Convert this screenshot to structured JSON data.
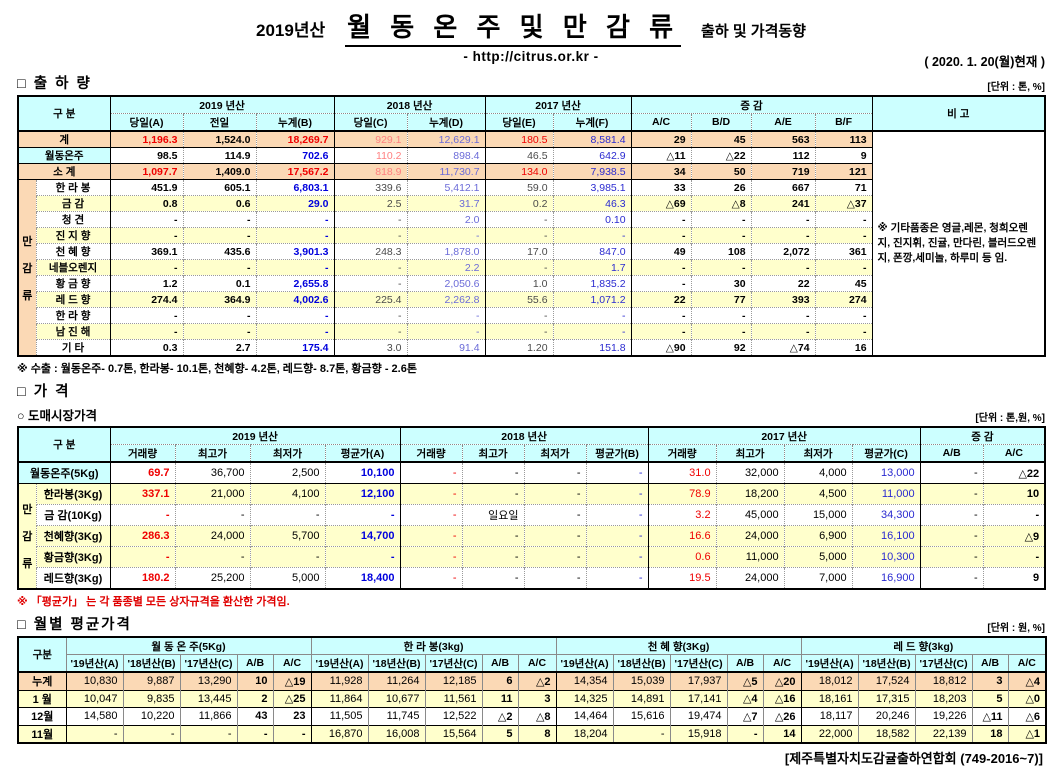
{
  "header": {
    "year": "2019년산",
    "title": "월 동 온 주 및 만 감 류",
    "subtitle": "출하 및 가격동향",
    "url": "- http://citrus.or.kr -",
    "date": "( 2020. 1. 20(월)현재 )"
  },
  "colors": {
    "header_bg": "#ccffff",
    "total_row_bg": "#fbd9b5",
    "shaded_row_bg": "#ffffcc",
    "accent_red": "#ef0000",
    "accent_blue": "#0000dd"
  },
  "shipment": {
    "section_title": "□ 출 하 량",
    "unit": "[단위 : 톤, %]",
    "corner_label": "구    분",
    "groups": [
      "2019 년산",
      "2018 년산",
      "2017 년산",
      "증       감"
    ],
    "sub_headers": [
      "당일(A)",
      "전일",
      "누계(B)",
      "당일(C)",
      "누계(D)",
      "당일(E)",
      "누계(F)",
      "A/C",
      "B/D",
      "A/E",
      "B/F"
    ],
    "remark_header": "비 고",
    "remark_text": "※ 기타품종은 영글,레몬, 청희오렌지, 진지휘, 진귤, 만다린, 블러드오렌지, 폰깡,세미놀, 하루미 등 임.",
    "side_label": "만감류",
    "rows": [
      {
        "label": "계",
        "kind": "total",
        "shaded": false,
        "values": [
          "1,196.3",
          "1,524.0",
          "18,269.7",
          "929.1",
          "12,629.1",
          "180.5",
          "8,581.4",
          "29",
          "45",
          "563",
          "113"
        ]
      },
      {
        "label": "월동온주",
        "kind": "onju",
        "shaded": false,
        "values": [
          "98.5",
          "114.9",
          "702.6",
          "110.2",
          "898.4",
          "46.5",
          "642.9",
          "△11",
          "△22",
          "112",
          "9"
        ]
      },
      {
        "label": "소     계",
        "kind": "total",
        "shaded": false,
        "values": [
          "1,097.7",
          "1,409.0",
          "17,567.2",
          "818.9",
          "11,730.7",
          "134.0",
          "7,938.5",
          "34",
          "50",
          "719",
          "121"
        ]
      },
      {
        "label": "한 라 봉",
        "kind": "detail",
        "shaded": false,
        "values": [
          "451.9",
          "605.1",
          "6,803.1",
          "339.6",
          "5,412.1",
          "59.0",
          "3,985.1",
          "33",
          "26",
          "667",
          "71"
        ]
      },
      {
        "label": "금     감",
        "kind": "detail",
        "shaded": true,
        "values": [
          "0.8",
          "0.6",
          "29.0",
          "2.5",
          "31.7",
          "0.2",
          "46.3",
          "△69",
          "△8",
          "241",
          "△37"
        ]
      },
      {
        "label": "청     견",
        "kind": "detail",
        "shaded": false,
        "values": [
          "-",
          "-",
          "-",
          "-",
          "2.0",
          "-",
          "0.10",
          "-",
          "-",
          "-",
          "-"
        ]
      },
      {
        "label": "진 지 향",
        "kind": "detail",
        "shaded": true,
        "values": [
          "-",
          "-",
          "-",
          "-",
          "-",
          "-",
          "-",
          "-",
          "-",
          "-",
          "-"
        ]
      },
      {
        "label": "천 혜 향",
        "kind": "detail",
        "shaded": false,
        "values": [
          "369.1",
          "435.6",
          "3,901.3",
          "248.3",
          "1,878.0",
          "17.0",
          "847.0",
          "49",
          "108",
          "2,072",
          "361"
        ]
      },
      {
        "label": "네블오렌지",
        "kind": "detail",
        "shaded": true,
        "values": [
          "-",
          "-",
          "-",
          "-",
          "2.2",
          "-",
          "1.7",
          "-",
          "-",
          "-",
          "-"
        ]
      },
      {
        "label": "황 금 향",
        "kind": "detail",
        "shaded": false,
        "values": [
          "1.2",
          "0.1",
          "2,655.8",
          "-",
          "2,050.6",
          "1.0",
          "1,835.2",
          "-",
          "30",
          "22",
          "45"
        ]
      },
      {
        "label": "레 드 향",
        "kind": "detail",
        "shaded": true,
        "values": [
          "274.4",
          "364.9",
          "4,002.6",
          "225.4",
          "2,262.8",
          "55.6",
          "1,071.2",
          "22",
          "77",
          "393",
          "274"
        ]
      },
      {
        "label": "한 라 향",
        "kind": "detail",
        "shaded": false,
        "values": [
          "-",
          "-",
          "-",
          "-",
          "-",
          "-",
          "-",
          "-",
          "-",
          "-",
          "-"
        ]
      },
      {
        "label": "남 진 해",
        "kind": "detail",
        "shaded": true,
        "values": [
          "-",
          "-",
          "-",
          "-",
          "-",
          "-",
          "-",
          "-",
          "-",
          "-",
          "-"
        ]
      },
      {
        "label": "기     타",
        "kind": "detail",
        "shaded": false,
        "values": [
          "0.3",
          "2.7",
          "175.4",
          "3.0",
          "91.4",
          "1.20",
          "151.8",
          "△90",
          "92",
          "△74",
          "16"
        ]
      }
    ],
    "footnote": "※ 수출 : 월동온주- 0.7톤, 한라봉- 10.1톤, 천혜향- 4.2톤, 레드향- 8.7톤, 황금향 - 2.6톤"
  },
  "price": {
    "section_title": "□ 가     격",
    "sub_section_title": "○ 도매시장가격",
    "unit": "[단위 : 톤,원, %]",
    "corner_label": "구      분",
    "groups": [
      "2019 년산",
      "2018 년산",
      "2017 년산",
      "증  감"
    ],
    "sub_headers": [
      "거래량",
      "최고가",
      "최저가",
      "평균가(A)",
      "거래량",
      "최고가",
      "최저가",
      "평균가(B)",
      "거래량",
      "최고가",
      "최저가",
      "평균가(C)",
      "A/B",
      "A/C"
    ],
    "side_label": "만감류",
    "rows": [
      {
        "label": "월동온주(5Kg)",
        "kind": "onju",
        "shaded": false,
        "values": [
          "69.7",
          "36,700",
          "2,500",
          "10,100",
          "-",
          "-",
          "-",
          "-",
          "31.0",
          "32,000",
          "4,000",
          "13,000",
          "-",
          "△22"
        ]
      },
      {
        "label": "한라봉(3Kg)",
        "kind": "detail",
        "shaded": true,
        "values": [
          "337.1",
          "21,000",
          "4,100",
          "12,100",
          "-",
          "-",
          "-",
          "-",
          "78.9",
          "18,200",
          "4,500",
          "11,000",
          "-",
          "10"
        ]
      },
      {
        "label": "금  감(10Kg)",
        "kind": "detail",
        "shaded": false,
        "values": [
          "-",
          "-",
          "-",
          "-",
          "-",
          "일요일",
          "-",
          "-",
          "3.2",
          "45,000",
          "15,000",
          "34,300",
          "-",
          "-"
        ]
      },
      {
        "label": "천혜향(3Kg)",
        "kind": "detail",
        "shaded": true,
        "values": [
          "286.3",
          "24,000",
          "5,700",
          "14,700",
          "-",
          "-",
          "-",
          "-",
          "16.6",
          "24,000",
          "6,900",
          "16,100",
          "-",
          "△9"
        ]
      },
      {
        "label": "황금향(3Kg)",
        "kind": "detail",
        "shaded": true,
        "values": [
          "-",
          "-",
          "-",
          "-",
          "-",
          "-",
          "-",
          "-",
          "0.6",
          "11,000",
          "5,000",
          "10,300",
          "-",
          "-"
        ]
      },
      {
        "label": "레드향(3Kg)",
        "kind": "detail",
        "shaded": false,
        "values": [
          "180.2",
          "25,200",
          "5,000",
          "18,400",
          "-",
          "-",
          "-",
          "-",
          "19.5",
          "24,000",
          "7,000",
          "16,900",
          "-",
          "9"
        ]
      }
    ],
    "footnote": "※  「평균가」 는 각 품종별 모든 상자규격을 환산한 가격임."
  },
  "monthly": {
    "section_title": "□ 월별 평균가격",
    "unit": "[단위 : 원, %]",
    "corner_label": "구분",
    "groups": [
      "월 동 온 주(5Kg)",
      "한  라  봉(3kg)",
      "천 혜 향(3Kg)",
      "레 드 향(3kg)"
    ],
    "sub_headers": [
      "'19년산(A)",
      "'18년산(B)",
      "'17년산(C)",
      "A/B",
      "A/C"
    ],
    "rows": [
      {
        "label": "누계",
        "kind": "total",
        "shaded": false,
        "values": [
          "10,830",
          "9,887",
          "13,290",
          "10",
          "△19",
          "11,928",
          "11,264",
          "12,185",
          "6",
          "△2",
          "14,354",
          "15,039",
          "17,937",
          "△5",
          "△20",
          "18,012",
          "17,524",
          "18,812",
          "3",
          "△4"
        ]
      },
      {
        "label": "1 월",
        "kind": "detail",
        "shaded": true,
        "values": [
          "10,047",
          "9,835",
          "13,445",
          "2",
          "△25",
          "11,864",
          "10,677",
          "11,561",
          "11",
          "3",
          "14,325",
          "14,891",
          "17,141",
          "△4",
          "△16",
          "18,161",
          "17,315",
          "18,203",
          "5",
          "△0"
        ]
      },
      {
        "label": "12월",
        "kind": "detail",
        "shaded": false,
        "values": [
          "14,580",
          "10,220",
          "11,866",
          "43",
          "23",
          "11,505",
          "11,745",
          "12,522",
          "△2",
          "△8",
          "14,464",
          "15,616",
          "19,474",
          "△7",
          "△26",
          "18,117",
          "20,246",
          "19,226",
          "△11",
          "△6"
        ]
      },
      {
        "label": "11월",
        "kind": "detail",
        "shaded": true,
        "values": [
          "-",
          "-",
          "-",
          "-",
          "-",
          "16,870",
          "16,008",
          "15,564",
          "5",
          "8",
          "18,204",
          "-",
          "15,918",
          "-",
          "14",
          "22,000",
          "18,582",
          "22,139",
          "18",
          "△1"
        ]
      }
    ]
  },
  "footer": "[제주특별자치도감귤출하연합회 (749-2016~7)]"
}
